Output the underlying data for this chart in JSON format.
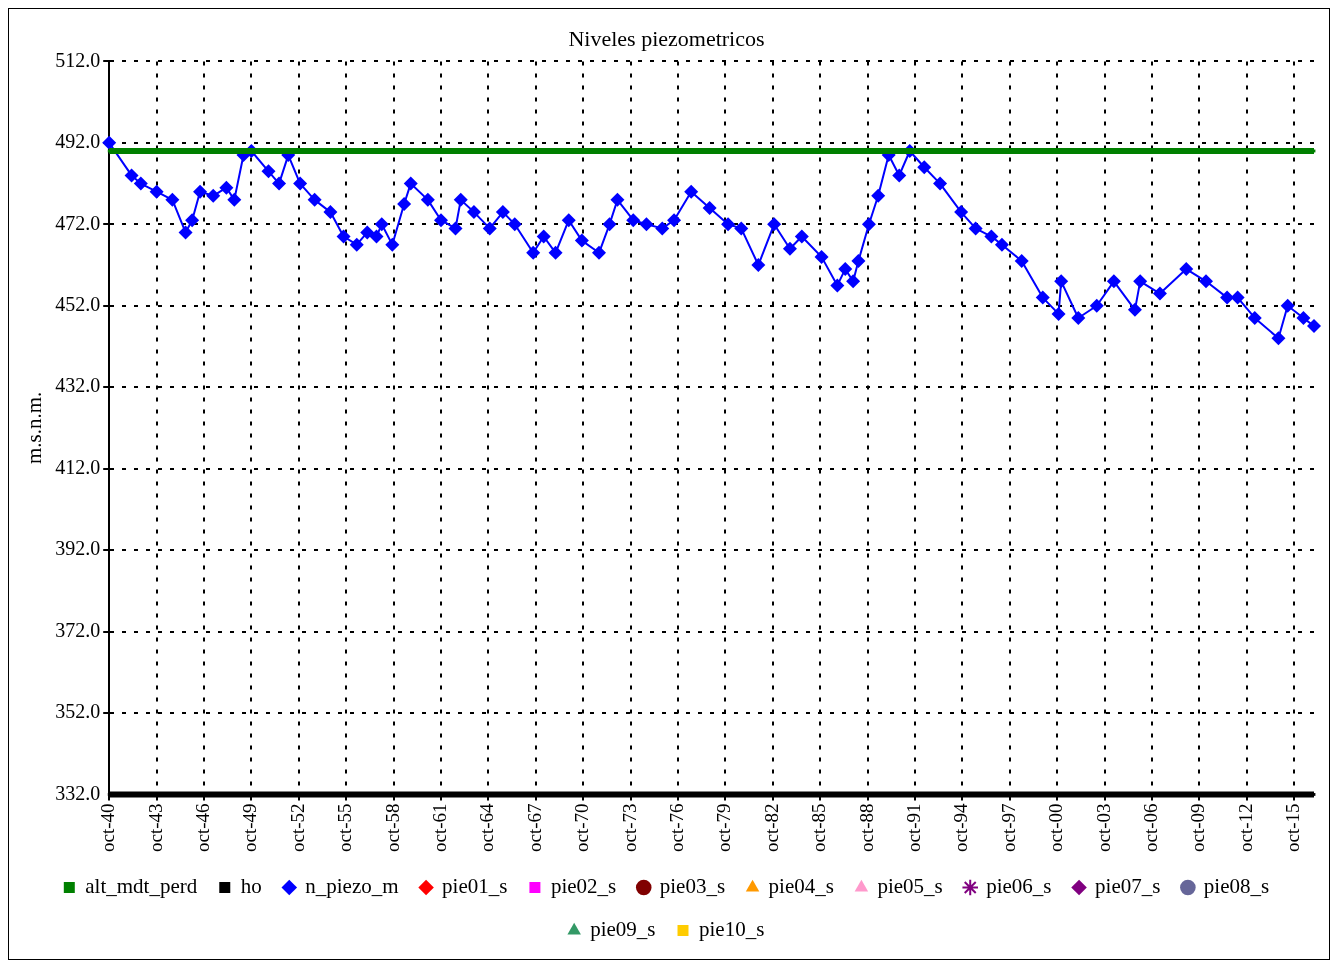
{
  "chart_data": {
    "type": "line",
    "title": "Niveles piezometricos",
    "ylabel": "m.s.n.m.",
    "xlim": [
      "1940-10",
      "2017-01"
    ],
    "ylim": [
      332,
      512
    ],
    "yticks": [
      {
        "value": 332,
        "label": "332.0"
      },
      {
        "value": 352,
        "label": "352.0"
      },
      {
        "value": 372,
        "label": "372.0"
      },
      {
        "value": 392,
        "label": "392.0"
      },
      {
        "value": 412,
        "label": "412.0"
      },
      {
        "value": 432,
        "label": "432.0"
      },
      {
        "value": 452,
        "label": "452.0"
      },
      {
        "value": 472,
        "label": "472.0"
      },
      {
        "value": 492,
        "label": "492.0"
      },
      {
        "value": 512,
        "label": "512.0"
      }
    ],
    "xticks": [
      {
        "value": "1940-10",
        "label": "oct-40"
      },
      {
        "value": "1943-10",
        "label": "oct-43"
      },
      {
        "value": "1946-10",
        "label": "oct-46"
      },
      {
        "value": "1949-10",
        "label": "oct-49"
      },
      {
        "value": "1952-10",
        "label": "oct-52"
      },
      {
        "value": "1955-10",
        "label": "oct-55"
      },
      {
        "value": "1958-10",
        "label": "oct-58"
      },
      {
        "value": "1961-10",
        "label": "oct-61"
      },
      {
        "value": "1964-10",
        "label": "oct-64"
      },
      {
        "value": "1967-10",
        "label": "oct-67"
      },
      {
        "value": "1970-10",
        "label": "oct-70"
      },
      {
        "value": "1973-10",
        "label": "oct-73"
      },
      {
        "value": "1976-10",
        "label": "oct-76"
      },
      {
        "value": "1979-10",
        "label": "oct-79"
      },
      {
        "value": "1982-10",
        "label": "oct-82"
      },
      {
        "value": "1985-10",
        "label": "oct-85"
      },
      {
        "value": "1988-10",
        "label": "oct-88"
      },
      {
        "value": "1991-10",
        "label": "oct-91"
      },
      {
        "value": "1994-10",
        "label": "oct-94"
      },
      {
        "value": "1997-10",
        "label": "oct-97"
      },
      {
        "value": "2000-10",
        "label": "oct-00"
      },
      {
        "value": "2003-10",
        "label": "oct-03"
      },
      {
        "value": "2006-10",
        "label": "oct-06"
      },
      {
        "value": "2009-10",
        "label": "oct-09"
      },
      {
        "value": "2012-10",
        "label": "oct-12"
      },
      {
        "value": "2015-10",
        "label": "oct-15"
      }
    ],
    "grid": true,
    "legend": "bottom",
    "line_style": "solid",
    "series": [
      {
        "name": "alt_mdt_perd",
        "type": "line",
        "color": "#008000",
        "marker": "square",
        "x": [
          "1940-10",
          "2017-01"
        ],
        "values": [
          490,
          490
        ]
      },
      {
        "name": "ho",
        "type": "line",
        "color": "#000000",
        "marker": "square",
        "x": [
          "1940-10",
          "2017-01"
        ],
        "values": [
          332,
          332
        ]
      },
      {
        "name": "n_piezo_m",
        "type": "line",
        "color": "#0000ff",
        "marker": "diamond",
        "x": [
          "1940-10",
          "1942-03",
          "1942-10",
          "1943-10",
          "1944-10",
          "1945-08",
          "1946-01",
          "1946-07",
          "1947-05",
          "1948-03",
          "1948-09",
          "1949-04",
          "1949-10",
          "1950-11",
          "1951-07",
          "1952-02",
          "1952-11",
          "1953-10",
          "1954-10",
          "1955-08",
          "1956-06",
          "1957-02",
          "1957-09",
          "1958-01",
          "1958-09",
          "1959-06",
          "1959-11",
          "1960-12",
          "1961-10",
          "1962-09",
          "1963-01",
          "1963-11",
          "1964-11",
          "1965-09",
          "1966-06",
          "1967-08",
          "1968-04",
          "1969-01",
          "1969-11",
          "1970-09",
          "1971-10",
          "1972-06",
          "1972-12",
          "1973-12",
          "1974-10",
          "1975-10",
          "1976-07",
          "1977-08",
          "1978-10",
          "1979-12",
          "1980-10",
          "1981-11",
          "1982-11",
          "1983-11",
          "1984-08",
          "1985-11",
          "1986-11",
          "1987-05",
          "1987-11",
          "1988-03",
          "1988-11",
          "1989-06",
          "1990-02",
          "1990-10",
          "1991-06",
          "1992-05",
          "1993-05",
          "1994-09",
          "1995-08",
          "1996-08",
          "1997-04",
          "1998-07",
          "1999-11",
          "2000-11",
          "2001-01",
          "2002-02",
          "2003-04",
          "2004-05",
          "2005-09",
          "2006-01",
          "2007-04",
          "2008-12",
          "2010-03",
          "2011-07",
          "2012-03",
          "2013-04",
          "2014-10",
          "2015-05",
          "2016-05",
          "2017-01"
        ],
        "values": [
          492,
          484,
          482,
          480,
          478,
          470,
          473,
          480,
          479,
          481,
          478,
          489,
          490,
          485,
          482,
          489,
          482,
          478,
          475,
          469,
          467,
          470,
          469,
          472,
          467,
          477,
          482,
          478,
          473,
          471,
          478,
          475,
          471,
          475,
          472,
          465,
          469,
          465,
          473,
          468,
          465,
          472,
          478,
          473,
          472,
          471,
          473,
          480,
          476,
          472,
          471,
          462,
          472,
          466,
          469,
          464,
          457,
          461,
          458,
          463,
          472,
          479,
          489,
          484,
          490,
          486,
          482,
          475,
          471,
          469,
          467,
          463,
          454,
          450,
          458,
          449,
          452,
          458,
          451,
          458,
          455,
          461,
          458,
          454,
          454,
          449,
          444,
          452,
          449,
          447
        ]
      },
      {
        "name": "pie01_s",
        "type": "scatter",
        "color": "#ff0000",
        "marker": "diamond"
      },
      {
        "name": "pie02_s",
        "type": "scatter",
        "color": "#ff00ff",
        "marker": "square"
      },
      {
        "name": "pie03_s",
        "type": "scatter",
        "color": "#800000",
        "marker": "circle"
      },
      {
        "name": "pie04_s",
        "type": "scatter",
        "color": "#ff9900",
        "marker": "triangle"
      },
      {
        "name": "pie05_s",
        "type": "scatter",
        "color": "#ff99cc",
        "marker": "triangle"
      },
      {
        "name": "pie06_s",
        "type": "scatter",
        "color": "#800080",
        "marker": "star"
      },
      {
        "name": "pie07_s",
        "type": "scatter",
        "color": "#800080",
        "marker": "diamond"
      },
      {
        "name": "pie08_s",
        "type": "scatter",
        "color": "#666699",
        "marker": "circle"
      },
      {
        "name": "pie09_s",
        "type": "scatter",
        "color": "#339966",
        "marker": "triangle"
      },
      {
        "name": "pie10_s",
        "type": "scatter",
        "color": "#ffcc00",
        "marker": "square"
      }
    ]
  }
}
